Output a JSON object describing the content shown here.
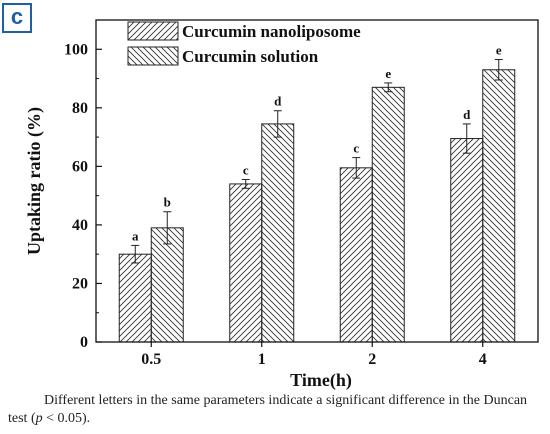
{
  "panel_label": "c",
  "chart_data": {
    "type": "bar",
    "xlabel": "Time(h)",
    "ylabel": "Uptaking ratio (%)",
    "ylim": [
      0,
      110
    ],
    "yticks": [
      0,
      20,
      40,
      60,
      80,
      100
    ],
    "categories": [
      "0.5",
      "1",
      "2",
      "4"
    ],
    "legend_position": "top-left",
    "series": [
      {
        "name": "Curcumin nanoliposome",
        "values": [
          30,
          54,
          59.5,
          69.5
        ],
        "errors": [
          3,
          1.5,
          3.5,
          5
        ],
        "letters": [
          "a",
          "c",
          "c",
          "d"
        ],
        "hatch": "forward"
      },
      {
        "name": "Curcumin solution",
        "values": [
          39,
          74.5,
          87,
          93
        ],
        "errors": [
          5.5,
          4.5,
          1.5,
          3.5
        ],
        "letters": [
          "b",
          "d",
          "e",
          "e"
        ],
        "hatch": "backward"
      }
    ]
  },
  "caption": {
    "part1": "Different letters in the same parameters indicate a significant difference in the Duncan test (",
    "p": "p",
    "part2": " < 0.05)."
  }
}
